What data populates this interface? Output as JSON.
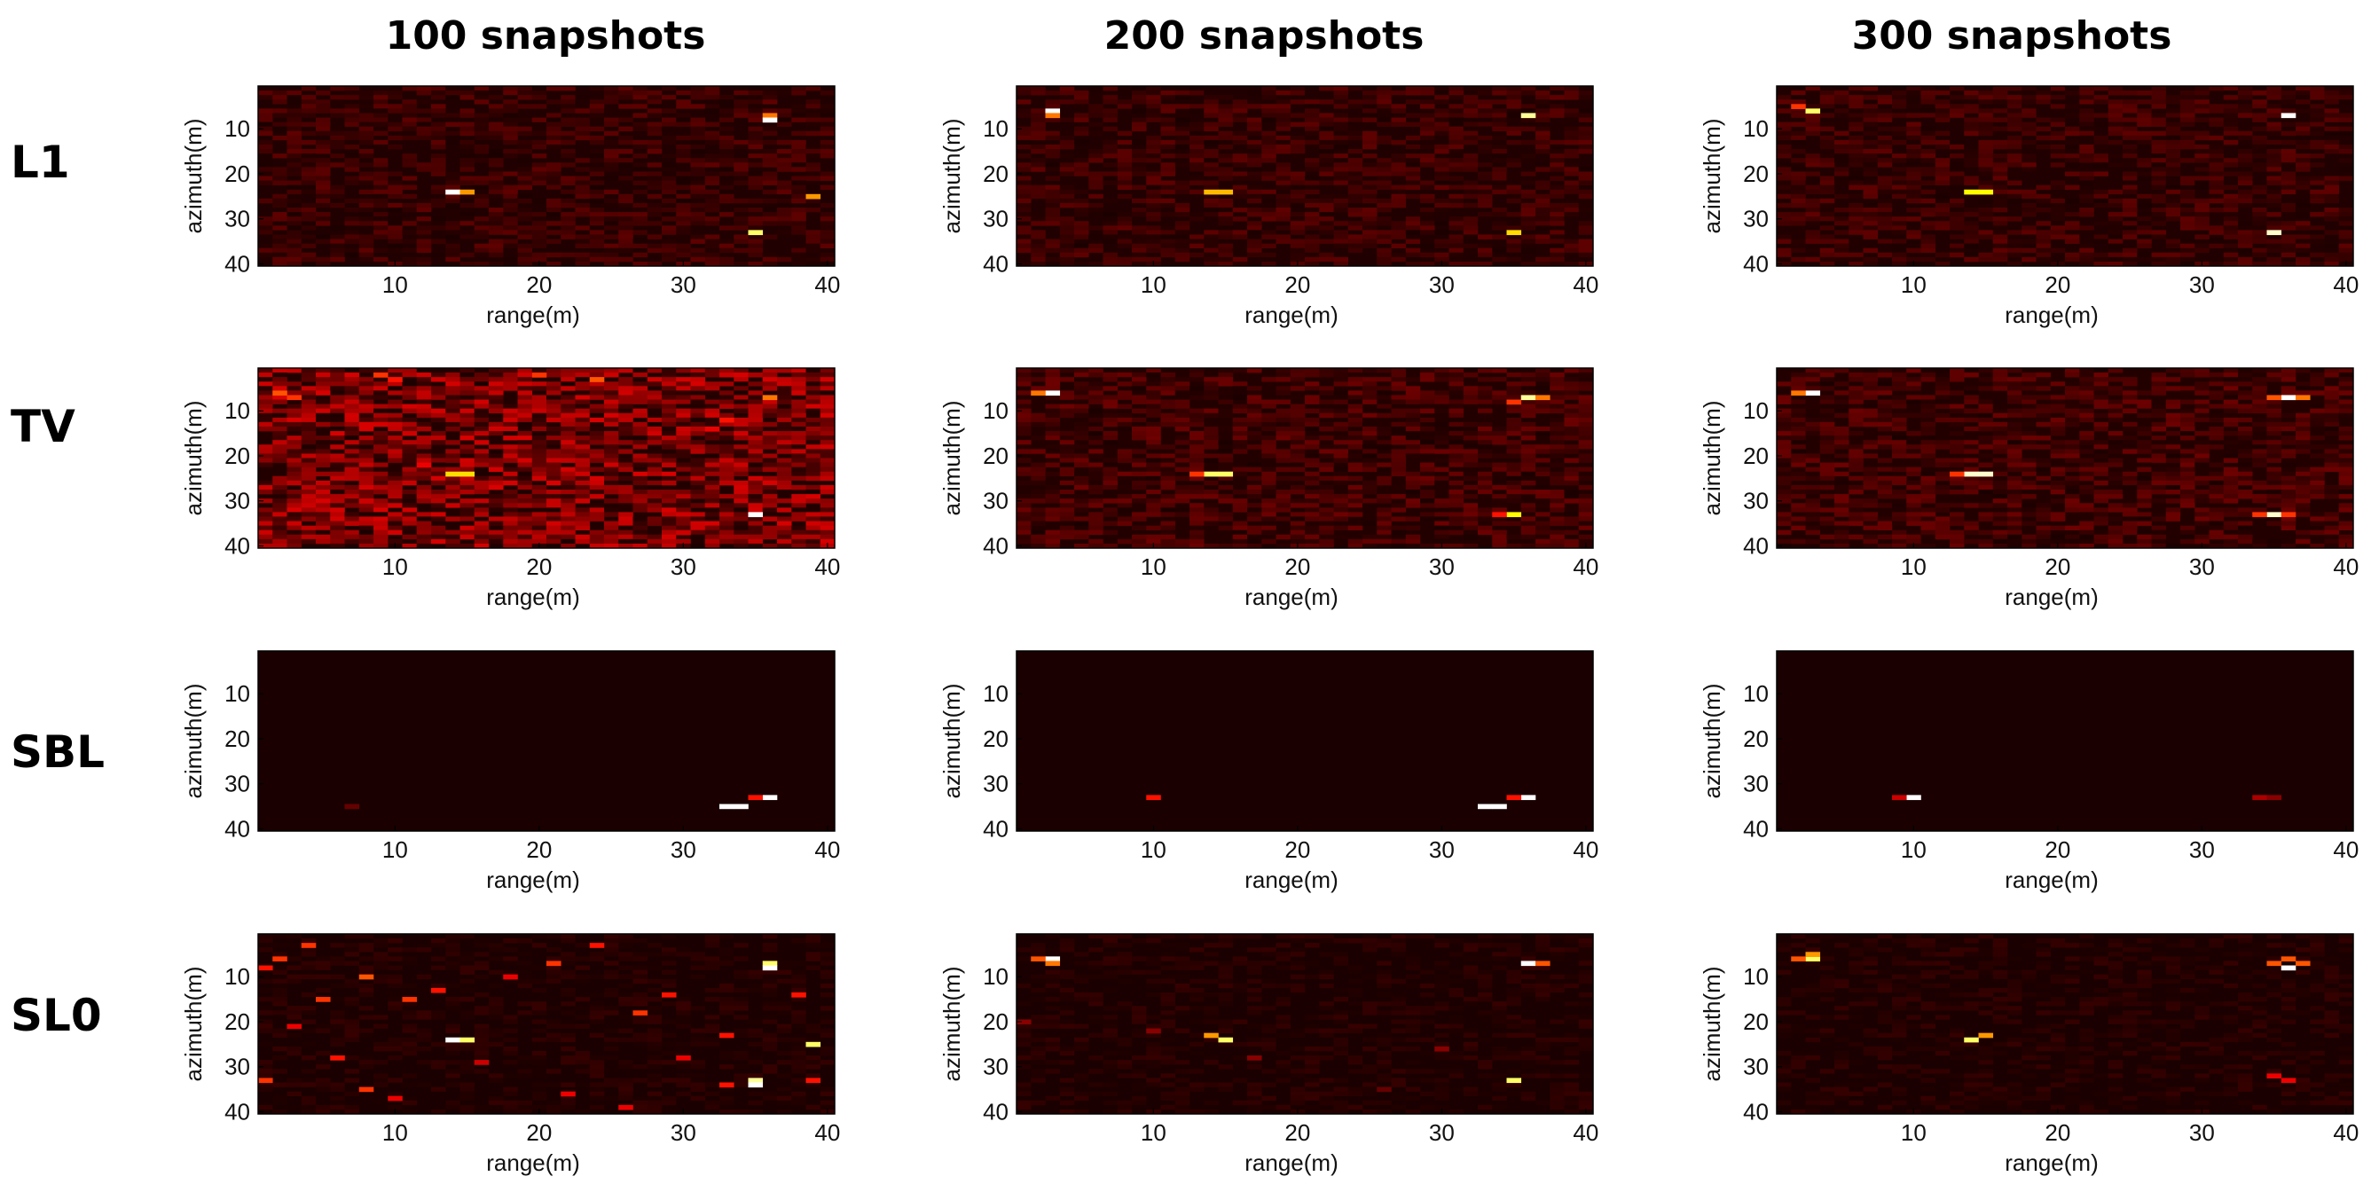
{
  "figure": {
    "columns": [
      "100 snapshots",
      "200 snapshots",
      "300 snapshots"
    ],
    "rows": [
      "L1",
      "TV",
      "SBL",
      "SL0"
    ]
  },
  "chart_data": {
    "type": "heatmap",
    "xlabel": "range(m)",
    "ylabel": "azimuth(m)",
    "xlim": [
      1,
      40
    ],
    "ylim": [
      1,
      40
    ],
    "xticks": [
      10,
      20,
      30,
      40
    ],
    "yticks": [
      10,
      20,
      30,
      40
    ],
    "colormap": "hot",
    "value_range": [
      0,
      1
    ],
    "background_colors": {
      "L1": "#200000",
      "TV": "#220000",
      "SBL": "#1a0000",
      "SL0": "#1a0000"
    },
    "panels": [
      {
        "method": "L1",
        "snapshots": 100,
        "peaks": [
          {
            "x": 36,
            "y": 7,
            "v": 0.55
          },
          {
            "x": 36,
            "y": 8,
            "v": 1.0
          },
          {
            "x": 14,
            "y": 24,
            "v": 1.0
          },
          {
            "x": 15,
            "y": 24,
            "v": 0.6
          },
          {
            "x": 39,
            "y": 25,
            "v": 0.6
          },
          {
            "x": 35,
            "y": 33,
            "v": 0.85
          }
        ]
      },
      {
        "method": "L1",
        "snapshots": 200,
        "peaks": [
          {
            "x": 3,
            "y": 6,
            "v": 1.0
          },
          {
            "x": 3,
            "y": 7,
            "v": 0.55
          },
          {
            "x": 36,
            "y": 7,
            "v": 0.9
          },
          {
            "x": 14,
            "y": 24,
            "v": 0.65
          },
          {
            "x": 15,
            "y": 24,
            "v": 0.65
          },
          {
            "x": 35,
            "y": 33,
            "v": 0.7
          }
        ]
      },
      {
        "method": "L1",
        "snapshots": 300,
        "peaks": [
          {
            "x": 3,
            "y": 6,
            "v": 0.85
          },
          {
            "x": 2,
            "y": 5,
            "v": 0.45
          },
          {
            "x": 36,
            "y": 7,
            "v": 1.0
          },
          {
            "x": 14,
            "y": 24,
            "v": 0.75
          },
          {
            "x": 15,
            "y": 24,
            "v": 0.75
          },
          {
            "x": 35,
            "y": 33,
            "v": 0.95
          }
        ]
      },
      {
        "method": "TV",
        "snapshots": 100,
        "peaks": [
          {
            "x": 2,
            "y": 6,
            "v": 0.5
          },
          {
            "x": 3,
            "y": 7,
            "v": 0.45
          },
          {
            "x": 9,
            "y": 2,
            "v": 0.45
          },
          {
            "x": 10,
            "y": 3,
            "v": 0.4
          },
          {
            "x": 20,
            "y": 2,
            "v": 0.45
          },
          {
            "x": 24,
            "y": 3,
            "v": 0.5
          },
          {
            "x": 36,
            "y": 7,
            "v": 0.55
          },
          {
            "x": 33,
            "y": 12,
            "v": 0.4
          },
          {
            "x": 32,
            "y": 14,
            "v": 0.35
          },
          {
            "x": 14,
            "y": 24,
            "v": 0.7
          },
          {
            "x": 15,
            "y": 24,
            "v": 0.7
          },
          {
            "x": 12,
            "y": 22,
            "v": 0.35
          },
          {
            "x": 35,
            "y": 33,
            "v": 1.0
          },
          {
            "x": 8,
            "y": 30,
            "v": 0.3
          },
          {
            "x": 30,
            "y": 37,
            "v": 0.3
          }
        ]
      },
      {
        "method": "TV",
        "snapshots": 200,
        "peaks": [
          {
            "x": 3,
            "y": 6,
            "v": 1.0
          },
          {
            "x": 2,
            "y": 6,
            "v": 0.55
          },
          {
            "x": 36,
            "y": 7,
            "v": 0.9
          },
          {
            "x": 37,
            "y": 7,
            "v": 0.55
          },
          {
            "x": 35,
            "y": 8,
            "v": 0.45
          },
          {
            "x": 15,
            "y": 24,
            "v": 0.85
          },
          {
            "x": 14,
            "y": 24,
            "v": 0.85
          },
          {
            "x": 13,
            "y": 24,
            "v": 0.45
          },
          {
            "x": 35,
            "y": 33,
            "v": 0.75
          },
          {
            "x": 34,
            "y": 33,
            "v": 0.4
          }
        ]
      },
      {
        "method": "TV",
        "snapshots": 300,
        "peaks": [
          {
            "x": 3,
            "y": 6,
            "v": 1.0
          },
          {
            "x": 2,
            "y": 6,
            "v": 0.55
          },
          {
            "x": 36,
            "y": 7,
            "v": 1.0
          },
          {
            "x": 37,
            "y": 7,
            "v": 0.55
          },
          {
            "x": 35,
            "y": 7,
            "v": 0.5
          },
          {
            "x": 15,
            "y": 24,
            "v": 0.95
          },
          {
            "x": 14,
            "y": 24,
            "v": 0.95
          },
          {
            "x": 13,
            "y": 24,
            "v": 0.45
          },
          {
            "x": 35,
            "y": 33,
            "v": 0.95
          },
          {
            "x": 34,
            "y": 33,
            "v": 0.45
          },
          {
            "x": 36,
            "y": 33,
            "v": 0.45
          }
        ]
      },
      {
        "method": "SBL",
        "snapshots": 100,
        "peaks": [
          {
            "x": 36,
            "y": 33,
            "v": 1.0
          },
          {
            "x": 35,
            "y": 33,
            "v": 0.4
          },
          {
            "x": 33,
            "y": 35,
            "v": 1.0
          },
          {
            "x": 34,
            "y": 35,
            "v": 1.0
          },
          {
            "x": 7,
            "y": 35,
            "v": 0.15
          }
        ]
      },
      {
        "method": "SBL",
        "snapshots": 200,
        "peaks": [
          {
            "x": 10,
            "y": 33,
            "v": 0.4
          },
          {
            "x": 36,
            "y": 33,
            "v": 1.0
          },
          {
            "x": 35,
            "y": 33,
            "v": 0.4
          },
          {
            "x": 33,
            "y": 35,
            "v": 1.0
          },
          {
            "x": 34,
            "y": 35,
            "v": 1.0
          }
        ]
      },
      {
        "method": "SBL",
        "snapshots": 300,
        "peaks": [
          {
            "x": 10,
            "y": 33,
            "v": 1.0
          },
          {
            "x": 9,
            "y": 33,
            "v": 0.3
          },
          {
            "x": 34,
            "y": 33,
            "v": 0.25
          },
          {
            "x": 35,
            "y": 33,
            "v": 0.2
          }
        ]
      },
      {
        "method": "SL0",
        "snapshots": 100,
        "peaks": [
          {
            "x": 36,
            "y": 7,
            "v": 0.85
          },
          {
            "x": 36,
            "y": 8,
            "v": 1.0
          },
          {
            "x": 14,
            "y": 24,
            "v": 1.0
          },
          {
            "x": 15,
            "y": 24,
            "v": 0.85
          },
          {
            "x": 39,
            "y": 25,
            "v": 0.85
          },
          {
            "x": 35,
            "y": 33,
            "v": 0.9
          },
          {
            "x": 35,
            "y": 34,
            "v": 1.0
          },
          {
            "x": 2,
            "y": 6,
            "v": 0.45
          },
          {
            "x": 4,
            "y": 3,
            "v": 0.45
          },
          {
            "x": 1,
            "y": 8,
            "v": 0.4
          },
          {
            "x": 8,
            "y": 10,
            "v": 0.5
          },
          {
            "x": 5,
            "y": 15,
            "v": 0.45
          },
          {
            "x": 11,
            "y": 15,
            "v": 0.45
          },
          {
            "x": 13,
            "y": 13,
            "v": 0.4
          },
          {
            "x": 21,
            "y": 7,
            "v": 0.45
          },
          {
            "x": 24,
            "y": 3,
            "v": 0.4
          },
          {
            "x": 18,
            "y": 10,
            "v": 0.35
          },
          {
            "x": 27,
            "y": 18,
            "v": 0.45
          },
          {
            "x": 29,
            "y": 14,
            "v": 0.4
          },
          {
            "x": 33,
            "y": 23,
            "v": 0.4
          },
          {
            "x": 30,
            "y": 28,
            "v": 0.35
          },
          {
            "x": 6,
            "y": 28,
            "v": 0.4
          },
          {
            "x": 8,
            "y": 35,
            "v": 0.45
          },
          {
            "x": 1,
            "y": 33,
            "v": 0.45
          },
          {
            "x": 10,
            "y": 37,
            "v": 0.35
          },
          {
            "x": 22,
            "y": 36,
            "v": 0.35
          },
          {
            "x": 26,
            "y": 39,
            "v": 0.35
          },
          {
            "x": 33,
            "y": 34,
            "v": 0.4
          },
          {
            "x": 38,
            "y": 14,
            "v": 0.4
          },
          {
            "x": 39,
            "y": 33,
            "v": 0.4
          },
          {
            "x": 16,
            "y": 29,
            "v": 0.3
          },
          {
            "x": 3,
            "y": 21,
            "v": 0.35
          }
        ]
      },
      {
        "method": "SL0",
        "snapshots": 200,
        "peaks": [
          {
            "x": 3,
            "y": 6,
            "v": 1.0
          },
          {
            "x": 2,
            "y": 6,
            "v": 0.5
          },
          {
            "x": 3,
            "y": 7,
            "v": 0.55
          },
          {
            "x": 36,
            "y": 7,
            "v": 1.0
          },
          {
            "x": 37,
            "y": 7,
            "v": 0.5
          },
          {
            "x": 15,
            "y": 24,
            "v": 0.85
          },
          {
            "x": 14,
            "y": 23,
            "v": 0.6
          },
          {
            "x": 35,
            "y": 33,
            "v": 0.85
          },
          {
            "x": 10,
            "y": 22,
            "v": 0.2
          },
          {
            "x": 1,
            "y": 20,
            "v": 0.2
          },
          {
            "x": 17,
            "y": 28,
            "v": 0.2
          },
          {
            "x": 30,
            "y": 26,
            "v": 0.2
          },
          {
            "x": 26,
            "y": 35,
            "v": 0.15
          }
        ]
      },
      {
        "method": "SL0",
        "snapshots": 300,
        "peaks": [
          {
            "x": 3,
            "y": 6,
            "v": 0.85
          },
          {
            "x": 3,
            "y": 5,
            "v": 0.6
          },
          {
            "x": 2,
            "y": 6,
            "v": 0.5
          },
          {
            "x": 36,
            "y": 8,
            "v": 1.0
          },
          {
            "x": 36,
            "y": 6,
            "v": 0.5
          },
          {
            "x": 37,
            "y": 7,
            "v": 0.5
          },
          {
            "x": 35,
            "y": 7,
            "v": 0.5
          },
          {
            "x": 14,
            "y": 24,
            "v": 0.85
          },
          {
            "x": 15,
            "y": 23,
            "v": 0.6
          },
          {
            "x": 35,
            "y": 32,
            "v": 0.35
          },
          {
            "x": 36,
            "y": 33,
            "v": 0.35
          }
        ]
      }
    ]
  }
}
